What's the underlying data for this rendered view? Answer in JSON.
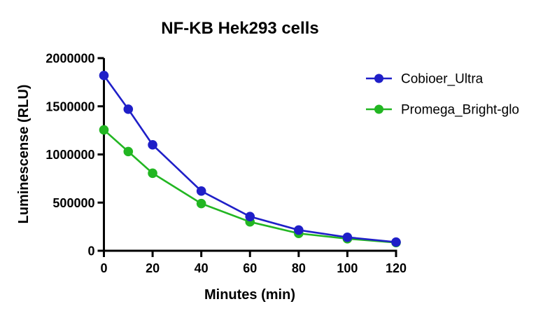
{
  "figure": {
    "background": "#ffffff",
    "axis_color": "#000000"
  },
  "chart_data": {
    "type": "line",
    "title": "NF-KB Hek293 cells",
    "xlabel": "Minutes (min)",
    "ylabel": "Luminescense (RLU)",
    "x": [
      0,
      10,
      20,
      40,
      60,
      80,
      100,
      120
    ],
    "series": [
      {
        "name": "Cobioer_Ultra",
        "color": "#1F1FC8",
        "values": [
          1820000,
          1470000,
          1100000,
          620000,
          355000,
          215000,
          140000,
          90000
        ]
      },
      {
        "name": "Promega_Bright-glo",
        "color": "#22B622",
        "values": [
          1255000,
          1030000,
          805000,
          490000,
          300000,
          180000,
          125000,
          85000
        ]
      }
    ],
    "xticks": [
      0,
      20,
      40,
      60,
      80,
      100,
      120
    ],
    "yticks": [
      0,
      500000,
      1000000,
      1500000,
      2000000
    ],
    "xlim": [
      0,
      120
    ],
    "ylim": [
      0,
      2000000
    ],
    "grid": false,
    "legend_position": "right",
    "marker": "circle"
  }
}
